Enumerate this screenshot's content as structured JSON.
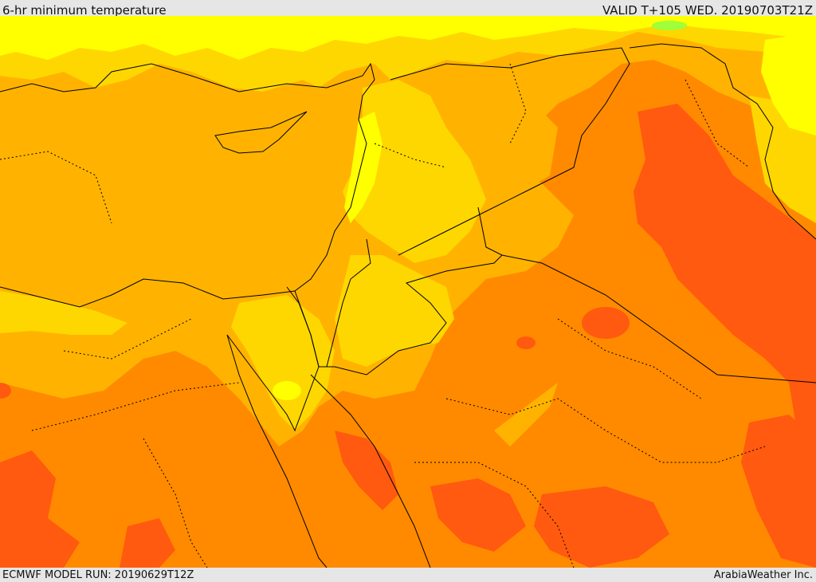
{
  "header": {
    "title": "6-hr minimum temperature",
    "valid": "VALID T+105 WED. 20190703T21Z"
  },
  "footer": {
    "model_run": "ECMWF MODEL RUN: 20190629T12Z",
    "credit": "ArabiaWeather Inc."
  },
  "map": {
    "field": "6-hr minimum temperature",
    "colors": {
      "coolest": "#ffff00",
      "cool": "#ffd700",
      "mild": "#ffb300",
      "warm": "#ff8a00",
      "hot": "#ff5a0f",
      "hottest": "#ff4e1a",
      "isolated_green": "#9eff3a"
    },
    "overlays": [
      "coastlines",
      "country-borders",
      "province-borders"
    ]
  }
}
